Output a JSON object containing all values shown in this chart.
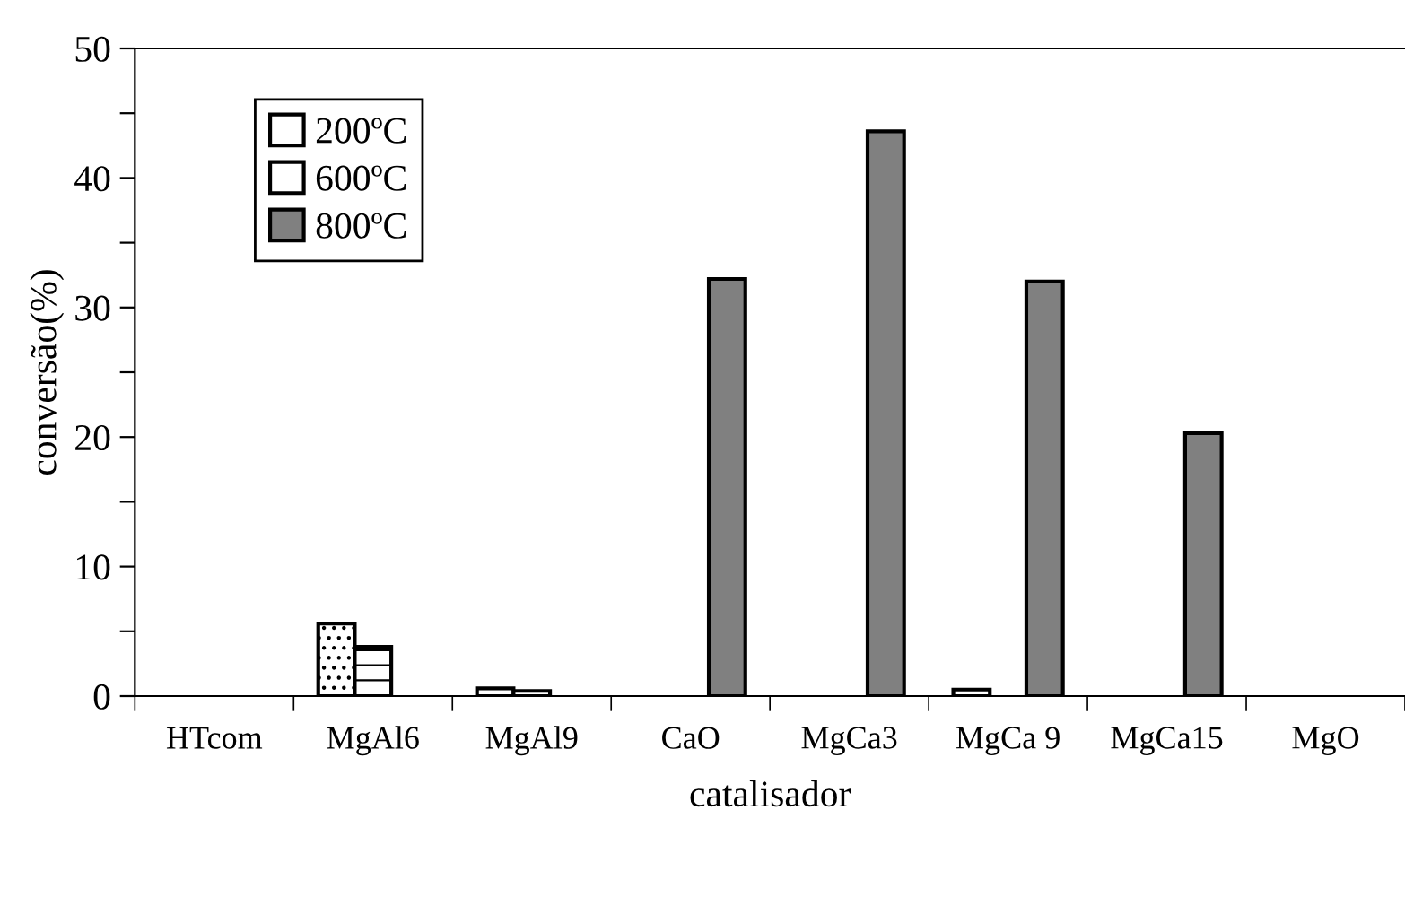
{
  "chart_data": {
    "type": "bar",
    "xlabel": "catalisador",
    "ylabel": "conversão(%)",
    "categories": [
      "HTcom",
      "MgAl6",
      "MgAl9",
      "CaO",
      "MgCa3",
      "MgCa 9",
      "MgCa15",
      "MgO"
    ],
    "series": [
      {
        "name": "200ºC",
        "color": "#ffffff",
        "values": [
          null,
          5.6,
          0.6,
          null,
          null,
          0.5,
          null,
          null
        ]
      },
      {
        "name": "600ºC",
        "color": "#ffffff",
        "values": [
          null,
          3.8,
          0.4,
          null,
          null,
          null,
          null,
          null
        ]
      },
      {
        "name": "800ºC",
        "color": "#808080",
        "values": [
          null,
          null,
          null,
          32.2,
          43.6,
          32.0,
          20.3,
          null
        ]
      }
    ],
    "ylim": [
      0,
      50
    ],
    "yticks": [
      0,
      {
        "value": 5,
        "label": null
      },
      10,
      {
        "value": 15,
        "label": null
      },
      20,
      {
        "value": 25,
        "label": null
      },
      30,
      {
        "value": 35,
        "label": null
      },
      40,
      {
        "value": 45,
        "label": null
      },
      50
    ],
    "legend": "top left",
    "grid": false
  }
}
